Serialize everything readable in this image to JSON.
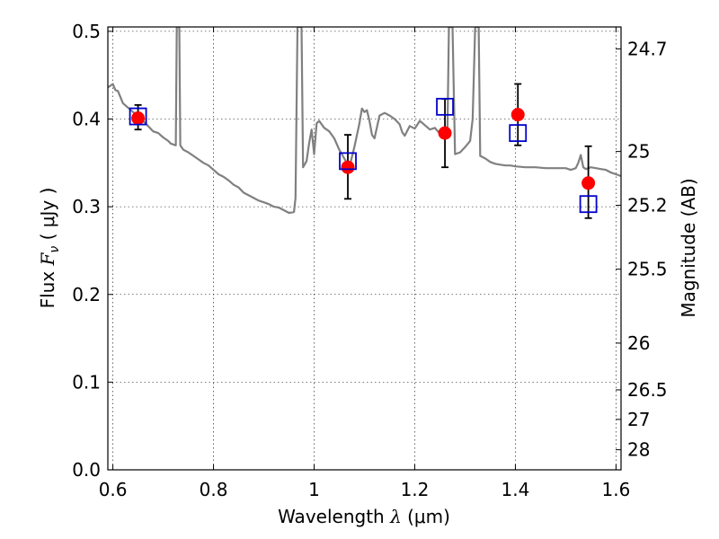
{
  "chart_data": {
    "type": "scatter",
    "xlabel": "Wavelength λ (μm)",
    "ylabel": "Flux F_ν (μJy)",
    "ylabel_parts": {
      "pre": "Flux ",
      "sym": "F",
      "sub": "ν",
      "post": " ( μJy )"
    },
    "xlabel_parts": {
      "pre": "Wavelength ",
      "sym": "λ",
      "post": " (μm)"
    },
    "y2label": "Magnitude (AB)",
    "xlim": [
      0.59,
      1.61
    ],
    "ylim": [
      0.0,
      0.505
    ],
    "x_ticks": [
      {
        "value": 0.6,
        "label": "0.6"
      },
      {
        "value": 0.8,
        "label": "0.8"
      },
      {
        "value": 1.0,
        "label": "1"
      },
      {
        "value": 1.2,
        "label": "1.2"
      },
      {
        "value": 1.4,
        "label": "1.4"
      },
      {
        "value": 1.6,
        "label": "1.6"
      }
    ],
    "y_ticks": [
      {
        "value": 0.0,
        "label": "0.0"
      },
      {
        "value": 0.1,
        "label": "0.1"
      },
      {
        "value": 0.2,
        "label": "0.2"
      },
      {
        "value": 0.3,
        "label": "0.3"
      },
      {
        "value": 0.4,
        "label": "0.4"
      },
      {
        "value": 0.5,
        "label": "0.5"
      }
    ],
    "y2_ticks": [
      {
        "flux": 0.48,
        "label": "24.7"
      },
      {
        "flux": 0.363,
        "label": "25"
      },
      {
        "flux": 0.3016,
        "label": "25.2"
      },
      {
        "flux": 0.2288,
        "label": "25.5"
      },
      {
        "flux": 0.1445,
        "label": "26"
      },
      {
        "flux": 0.0912,
        "label": "26.5"
      },
      {
        "flux": 0.0575,
        "label": "27"
      },
      {
        "flux": 0.0229,
        "label": "28"
      }
    ],
    "grid": true,
    "colors": {
      "model": "#808080",
      "observed": "#ff0000",
      "model_points": "#0000cc",
      "errorbar": "#000000"
    },
    "series": [
      {
        "kind": "line",
        "points": [
          [
            0.59,
            0.436
          ],
          [
            0.6,
            0.44
          ],
          [
            0.605,
            0.433
          ],
          [
            0.61,
            0.432
          ],
          [
            0.62,
            0.418
          ],
          [
            0.63,
            0.413
          ],
          [
            0.64,
            0.408
          ],
          [
            0.65,
            0.403
          ],
          [
            0.66,
            0.398
          ],
          [
            0.67,
            0.392
          ],
          [
            0.68,
            0.386
          ],
          [
            0.69,
            0.384
          ],
          [
            0.7,
            0.379
          ],
          [
            0.71,
            0.375
          ],
          [
            0.715,
            0.372
          ],
          [
            0.72,
            0.371
          ],
          [
            0.725,
            0.37
          ],
          [
            0.727,
            0.505
          ],
          [
            0.732,
            0.505
          ],
          [
            0.734,
            0.37
          ],
          [
            0.74,
            0.365
          ],
          [
            0.75,
            0.362
          ],
          [
            0.76,
            0.358
          ],
          [
            0.77,
            0.354
          ],
          [
            0.78,
            0.35
          ],
          [
            0.79,
            0.347
          ],
          [
            0.8,
            0.342
          ],
          [
            0.81,
            0.337
          ],
          [
            0.82,
            0.334
          ],
          [
            0.83,
            0.33
          ],
          [
            0.84,
            0.325
          ],
          [
            0.85,
            0.322
          ],
          [
            0.86,
            0.316
          ],
          [
            0.87,
            0.313
          ],
          [
            0.88,
            0.31
          ],
          [
            0.89,
            0.307
          ],
          [
            0.9,
            0.305
          ],
          [
            0.91,
            0.303
          ],
          [
            0.92,
            0.3
          ],
          [
            0.93,
            0.299
          ],
          [
            0.94,
            0.296
          ],
          [
            0.95,
            0.293
          ],
          [
            0.96,
            0.294
          ],
          [
            0.963,
            0.31
          ],
          [
            0.967,
            0.505
          ],
          [
            0.975,
            0.505
          ],
          [
            0.978,
            0.345
          ],
          [
            0.985,
            0.352
          ],
          [
            0.99,
            0.372
          ],
          [
            0.995,
            0.388
          ],
          [
            1.0,
            0.36
          ],
          [
            1.005,
            0.395
          ],
          [
            1.01,
            0.398
          ],
          [
            1.02,
            0.39
          ],
          [
            1.03,
            0.386
          ],
          [
            1.04,
            0.378
          ],
          [
            1.05,
            0.365
          ],
          [
            1.06,
            0.355
          ],
          [
            1.07,
            0.345
          ],
          [
            1.08,
            0.368
          ],
          [
            1.09,
            0.395
          ],
          [
            1.095,
            0.412
          ],
          [
            1.1,
            0.408
          ],
          [
            1.105,
            0.41
          ],
          [
            1.11,
            0.398
          ],
          [
            1.115,
            0.382
          ],
          [
            1.12,
            0.378
          ],
          [
            1.13,
            0.404
          ],
          [
            1.14,
            0.407
          ],
          [
            1.15,
            0.404
          ],
          [
            1.16,
            0.4
          ],
          [
            1.17,
            0.394
          ],
          [
            1.175,
            0.385
          ],
          [
            1.18,
            0.381
          ],
          [
            1.19,
            0.392
          ],
          [
            1.2,
            0.389
          ],
          [
            1.21,
            0.398
          ],
          [
            1.22,
            0.393
          ],
          [
            1.23,
            0.388
          ],
          [
            1.24,
            0.39
          ],
          [
            1.25,
            0.383
          ],
          [
            1.26,
            0.385
          ],
          [
            1.265,
            0.39
          ],
          [
            1.268,
            0.505
          ],
          [
            1.275,
            0.505
          ],
          [
            1.28,
            0.36
          ],
          [
            1.29,
            0.362
          ],
          [
            1.3,
            0.368
          ],
          [
            1.31,
            0.375
          ],
          [
            1.315,
            0.4
          ],
          [
            1.32,
            0.505
          ],
          [
            1.327,
            0.505
          ],
          [
            1.33,
            0.358
          ],
          [
            1.34,
            0.355
          ],
          [
            1.35,
            0.351
          ],
          [
            1.36,
            0.349
          ],
          [
            1.37,
            0.348
          ],
          [
            1.38,
            0.347
          ],
          [
            1.39,
            0.347
          ],
          [
            1.4,
            0.346
          ],
          [
            1.42,
            0.345
          ],
          [
            1.44,
            0.345
          ],
          [
            1.46,
            0.344
          ],
          [
            1.48,
            0.344
          ],
          [
            1.5,
            0.344
          ],
          [
            1.51,
            0.342
          ],
          [
            1.52,
            0.344
          ],
          [
            1.525,
            0.35
          ],
          [
            1.53,
            0.359
          ],
          [
            1.535,
            0.345
          ],
          [
            1.54,
            0.343
          ],
          [
            1.55,
            0.345
          ],
          [
            1.56,
            0.344
          ],
          [
            1.57,
            0.343
          ],
          [
            1.58,
            0.342
          ],
          [
            1.59,
            0.339
          ],
          [
            1.6,
            0.337
          ],
          [
            1.61,
            0.335
          ]
        ]
      },
      {
        "kind": "points",
        "marker": "circle",
        "points": [
          {
            "x": 0.65,
            "y": 0.401,
            "yerr_low": 0.013,
            "yerr_high": 0.015
          },
          {
            "x": 1.067,
            "y": 0.345,
            "yerr_low": 0.036,
            "yerr_high": 0.037
          },
          {
            "x": 1.26,
            "y": 0.384,
            "yerr_low": 0.039,
            "yerr_high": 0.039
          },
          {
            "x": 1.405,
            "y": 0.405,
            "yerr_low": 0.035,
            "yerr_high": 0.035
          },
          {
            "x": 1.545,
            "y": 0.327,
            "yerr_low": 0.04,
            "yerr_high": 0.042
          }
        ]
      },
      {
        "kind": "points",
        "marker": "square",
        "points": [
          {
            "x": 0.65,
            "y": 0.403
          },
          {
            "x": 1.067,
            "y": 0.352
          },
          {
            "x": 1.26,
            "y": 0.414
          },
          {
            "x": 1.405,
            "y": 0.384
          },
          {
            "x": 1.545,
            "y": 0.303
          }
        ]
      }
    ]
  }
}
